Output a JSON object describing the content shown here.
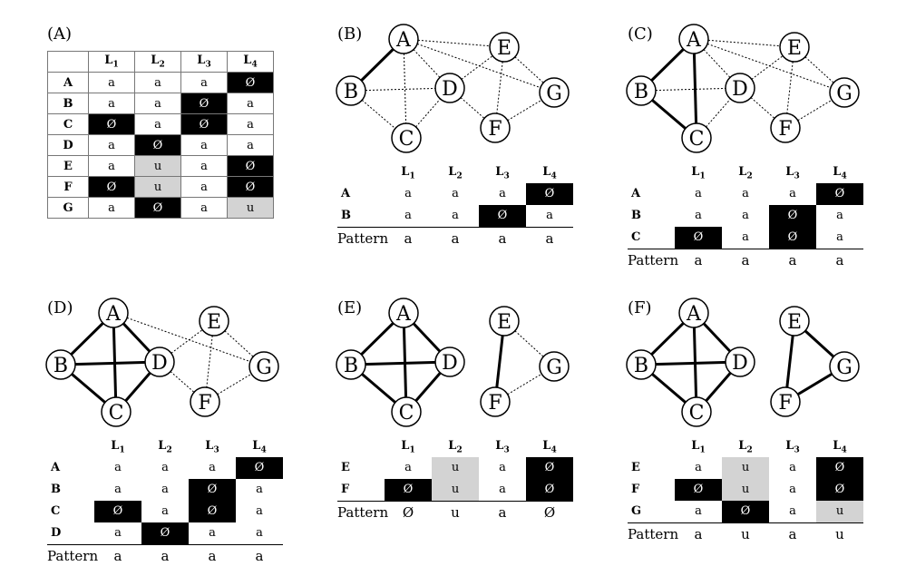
{
  "panels": {
    "A": {
      "label": "(A)"
    },
    "B": {
      "label": "(B)"
    },
    "C": {
      "label": "(C)"
    },
    "D": {
      "label": "(D)"
    },
    "E": {
      "label": "(E)"
    },
    "F": {
      "label": "(F)"
    }
  },
  "nodes": [
    "A",
    "B",
    "C",
    "D",
    "E",
    "F",
    "G"
  ],
  "layers": [
    "L1",
    "L2",
    "L3",
    "L4"
  ],
  "pattern_label": "Pattern",
  "matrix": {
    "A": [
      "a",
      "a",
      "a",
      "Ø"
    ],
    "B": [
      "a",
      "a",
      "Ø",
      "a"
    ],
    "C": [
      "Ø",
      "a",
      "Ø",
      "a"
    ],
    "D": [
      "a",
      "Ø",
      "a",
      "a"
    ],
    "E": [
      "a",
      "u",
      "a",
      "Ø"
    ],
    "F": [
      "Ø",
      "u",
      "a",
      "Ø"
    ],
    "G": [
      "a",
      "Ø",
      "a",
      "u"
    ]
  },
  "tables": {
    "B": {
      "rows": [
        "A",
        "B"
      ],
      "pattern": [
        "a",
        "a",
        "a",
        "a"
      ]
    },
    "C": {
      "rows": [
        "A",
        "B",
        "C"
      ],
      "pattern": [
        "a",
        "a",
        "a",
        "a"
      ]
    },
    "D": {
      "rows": [
        "A",
        "B",
        "C",
        "D"
      ],
      "pattern": [
        "a",
        "a",
        "a",
        "a"
      ]
    },
    "E": {
      "rows": [
        "E",
        "F"
      ],
      "pattern": [
        "Ø",
        "u",
        "a",
        "Ø"
      ]
    },
    "F": {
      "rows": [
        "E",
        "F",
        "G"
      ],
      "pattern": [
        "a",
        "u",
        "a",
        "u"
      ]
    }
  },
  "colors": {
    "absent": "#000000",
    "unknown": "#d3d3d3"
  }
}
